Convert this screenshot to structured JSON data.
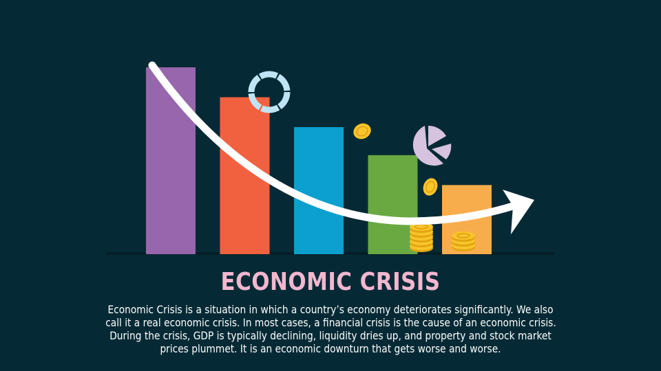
{
  "title": "ECONOMIC CRISIS",
  "description_lines": [
    "Economic Crisis is a situation in which a country’s economy deteriorates significantly. We also",
    "call it a real economic crisis. In most cases, a financial crisis is the cause of an economic crisis.",
    "During the crisis, GDP is typically declining, liquidity dries up, and property and stock market",
    "prices plummet. It is an economic downturn that gets worse and worse."
  ],
  "colors": {
    "background": "#062a35",
    "title": "#f3b7cf",
    "text": "#ffffff",
    "bars": [
      "#9766ac",
      "#f2613f",
      "#0ba0cf",
      "#6aa842",
      "#f8ad4c"
    ],
    "ring": "#bfe4f3",
    "pie": "#d5c3df",
    "coin": "#f7c52a",
    "arrow": "#ffffff"
  },
  "chart_data": {
    "type": "bar",
    "values": [
      100,
      84,
      68,
      53,
      37
    ],
    "trend": "declining"
  }
}
